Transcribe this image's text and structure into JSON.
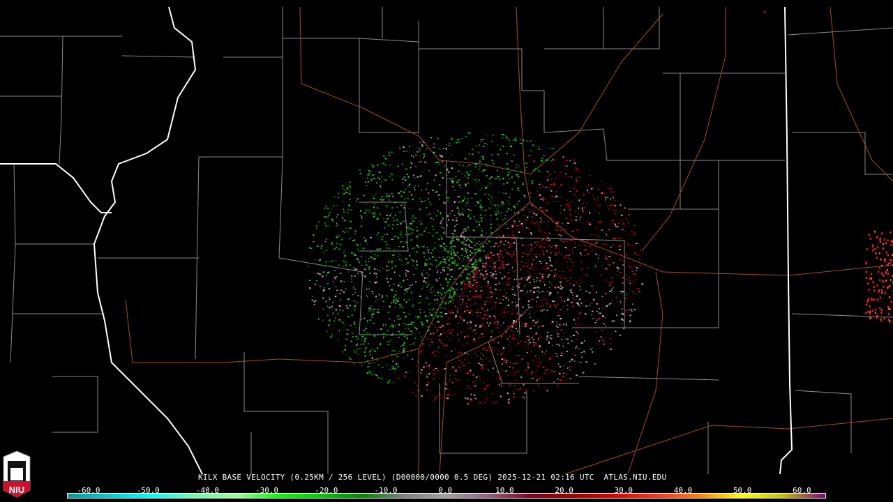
{
  "product": {
    "caption": "KILX BASE VELOCITY (0.25KM / 256 LEVEL) (D00000/0000 0.5 DEG) 2025-12-21 02:16 UTC  ATLAS.NIU.EDU",
    "radar_site": "KILX",
    "product_name": "BASE VELOCITY",
    "elevation": "0.5 DEG",
    "timestamp": "2025-12-21 02:16 UTC",
    "source": "ATLAS.NIU.EDU"
  },
  "logo": {
    "text": "NIU",
    "colors": {
      "red": "#d0102a",
      "white": "#ffffff"
    }
  },
  "colorbar": {
    "ticks": [
      "-60.0",
      "-50.0",
      "-40.0",
      "-30.0",
      "-20.0",
      "-10.0",
      "0.0",
      "10.0",
      "20.0",
      "30.0",
      "40.0",
      "50.0",
      "60.0"
    ],
    "colors": [
      "#009999",
      "#00cccc",
      "#00ffff",
      "#66ffaa",
      "#99ff99",
      "#00ff00",
      "#00cc00",
      "#008800",
      "#808080",
      "#a0a0a0",
      "#906080",
      "#800020",
      "#a00000",
      "#e00000",
      "#ff3020",
      "#ff8000",
      "#ffff00",
      "#c0c000",
      "#800080"
    ]
  },
  "map_colors": {
    "state_border": "#ffffff",
    "county_border": "#8a8a8a",
    "highway": "#a0502a",
    "inbound": "#00cc00",
    "outbound": "#cc0020",
    "near_zero": "#c0a0b0"
  }
}
